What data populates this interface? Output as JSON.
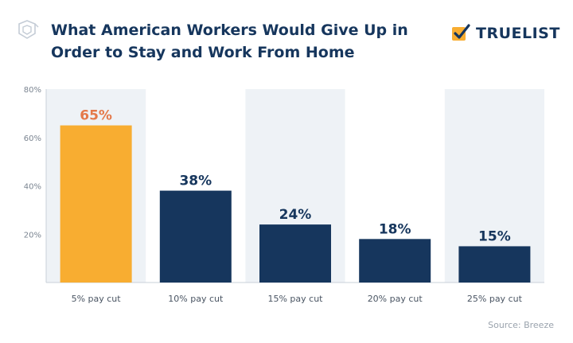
{
  "header": {
    "title_line1": "What American Workers Would Give Up in",
    "title_line2": "Order to Stay and Work From Home"
  },
  "brand": {
    "name": "TRUELIST"
  },
  "source": "Source: Breeze",
  "colors": {
    "highlight_bar": "#f8ad31",
    "highlight_label": "#e4794a",
    "bar": "#16365d",
    "label": "#16365d",
    "band": "#eef2f6"
  },
  "chart_data": {
    "type": "bar",
    "title": "What American Workers Would Give Up in Order to Stay and Work From Home",
    "xlabel": "",
    "ylabel": "",
    "categories": [
      "5% pay cut",
      "10% pay cut",
      "15% pay cut",
      "20% pay cut",
      "25% pay cut"
    ],
    "values": [
      65,
      38,
      24,
      18,
      15
    ],
    "value_labels": [
      "65%",
      "38%",
      "24%",
      "18%",
      "15%"
    ],
    "yticks": [
      "80%",
      "60%",
      "40%",
      "20%"
    ],
    "ytick_values": [
      80,
      60,
      40,
      20
    ],
    "ylim": [
      0,
      80
    ],
    "highlight_index": 0,
    "grid": false,
    "legend": "none"
  }
}
